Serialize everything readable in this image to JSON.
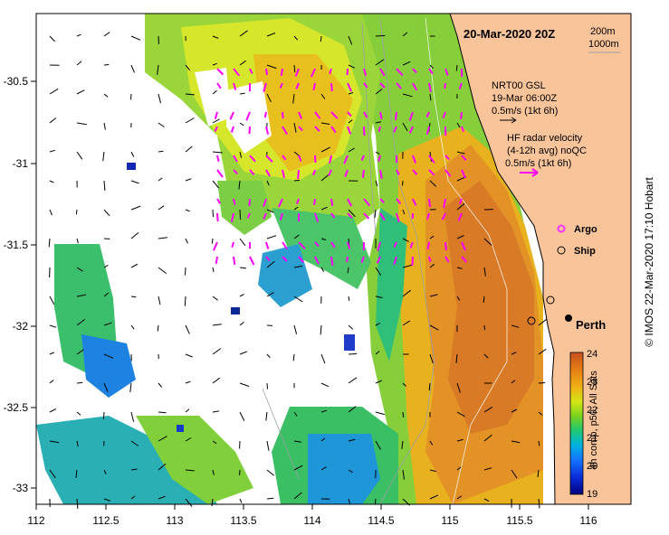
{
  "header": {
    "date_label": "20-Mar-2020 20Z"
  },
  "legend": {
    "contours": [
      "200m",
      "1000m"
    ],
    "nrt": {
      "line1": "NRT00 GSL",
      "line2": "19-Mar 06:00Z",
      "line3": "0.5m/s (1kt 6h)"
    },
    "hf": {
      "line1": "HF radar velocity",
      "line2": "(4-12h avg) noQC",
      "line3": "0.5m/s (1kt 6h)"
    },
    "argo_label": "Argo",
    "ship_label": "Ship"
  },
  "place": {
    "perth": "Perth"
  },
  "axes": {
    "x_ticks": [
      "112",
      "112.5",
      "113",
      "113.5",
      "114",
      "114.5",
      "115",
      "115.5",
      "116"
    ],
    "y_ticks": [
      "-30.5",
      "-31",
      "-31.5",
      "-32",
      "-32.5",
      "-33"
    ]
  },
  "colorbar": {
    "ticks": [
      "24",
      "23",
      "22",
      "21",
      "20",
      "19"
    ],
    "label": "4h comp, p50, All Sats"
  },
  "credit": "© IMOS 22-Mar-2020 17:10 Hobart",
  "colors": {
    "land": "#f9c49a",
    "hf_arrow": "#ff00ff",
    "argo": "#ff33ff"
  }
}
